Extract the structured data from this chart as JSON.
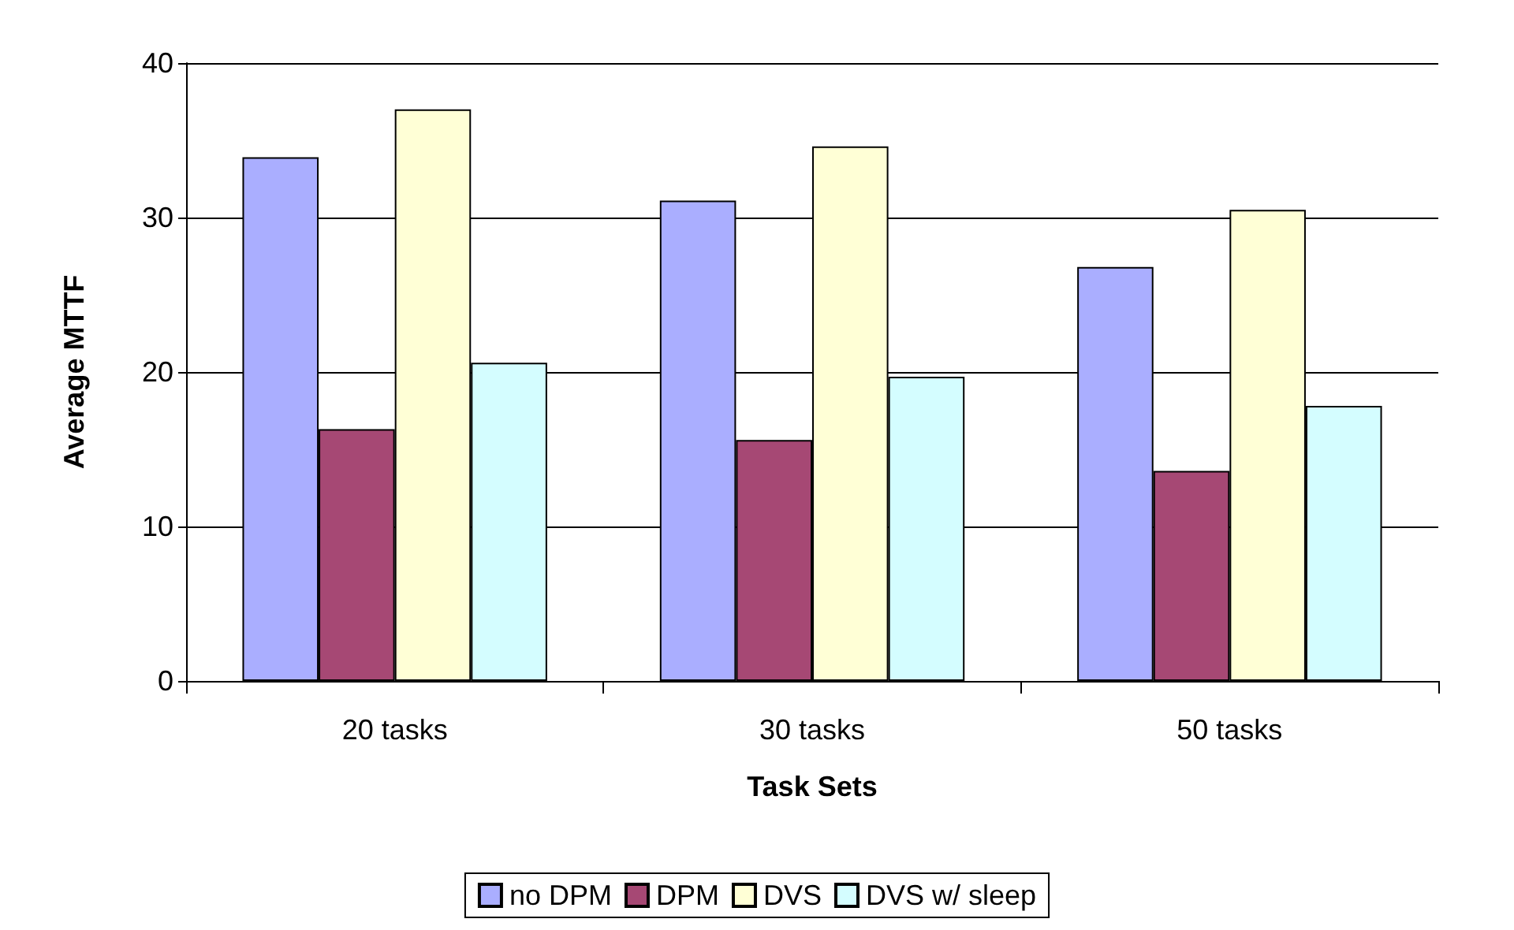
{
  "chart_data": {
    "type": "bar",
    "xlabel": "Task Sets",
    "ylabel": "Average MTTF",
    "categories": [
      "20 tasks",
      "30 tasks",
      "50 tasks"
    ],
    "series": [
      {
        "name": "no DPM",
        "color": "#aaaeff",
        "values": [
          33.9,
          31.1,
          26.8
        ]
      },
      {
        "name": "DPM",
        "color": "#a64874",
        "values": [
          16.3,
          15.6,
          13.6
        ]
      },
      {
        "name": "DVS",
        "color": "#ffffd6",
        "values": [
          37.0,
          34.6,
          30.5
        ]
      },
      {
        "name": "DVS w/ sleep",
        "color": "#d4fdff",
        "values": [
          20.6,
          19.7,
          17.8
        ]
      }
    ],
    "ylim": [
      0,
      40
    ],
    "yticks": [
      0,
      10,
      20,
      30,
      40
    ],
    "grid": "y",
    "legend": "bottom"
  }
}
